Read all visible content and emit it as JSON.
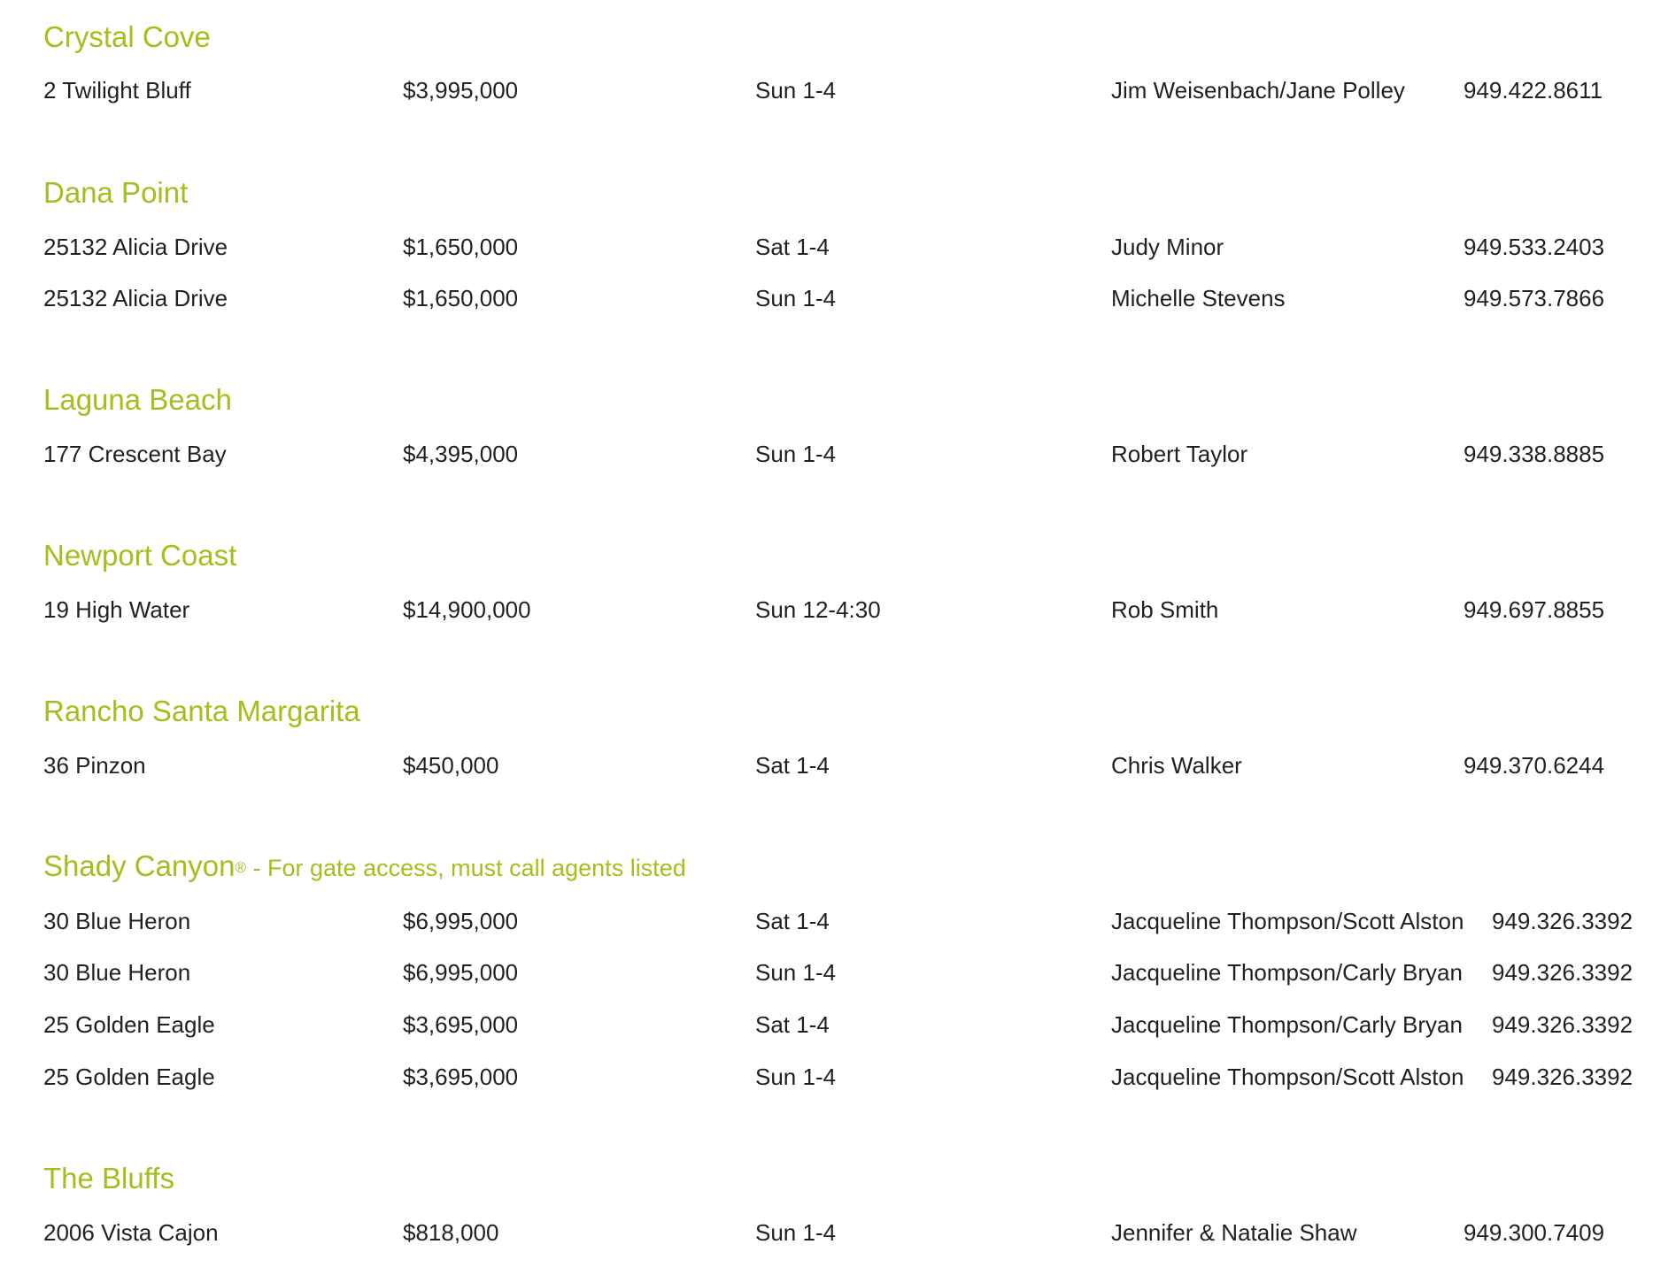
{
  "accent_color": "#a2bf1b",
  "sections": [
    {
      "title": "Crystal Cove",
      "rows": [
        {
          "address": "2 Twilight Bluff",
          "price": "$3,995,000",
          "time": "Sun 1-4",
          "agent": "Jim Weisenbach/Jane Polley",
          "phone": "949.422.8611"
        }
      ]
    },
    {
      "title": "Dana Point",
      "rows": [
        {
          "address": "25132 Alicia Drive",
          "price": "$1,650,000",
          "time": "Sat 1-4",
          "agent": "Judy Minor",
          "phone": "949.533.2403"
        },
        {
          "address": "25132 Alicia Drive",
          "price": "$1,650,000",
          "time": "Sun 1-4",
          "agent": "Michelle Stevens",
          "phone": "949.573.7866"
        }
      ]
    },
    {
      "title": "Laguna Beach",
      "rows": [
        {
          "address": "177 Crescent Bay",
          "price": "$4,395,000",
          "time": "Sun 1-4",
          "agent": "Robert Taylor",
          "phone": "949.338.8885"
        }
      ]
    },
    {
      "title": "Newport Coast",
      "rows": [
        {
          "address": "19 High Water",
          "price": "$14,900,000",
          "time": "Sun 12-4:30",
          "agent": "Rob Smith",
          "phone": "949.697.8855"
        }
      ]
    },
    {
      "title": "Rancho Santa Margarita",
      "rows": [
        {
          "address": "36 Pinzon",
          "price": "$450,000",
          "time": "Sat 1-4",
          "agent": "Chris Walker",
          "phone": "949.370.6244"
        }
      ]
    },
    {
      "title": "Shady Canyon",
      "mark": "®",
      "note": " - For gate access, must call agents listed",
      "rows": [
        {
          "address": "30 Blue Heron",
          "price": "$6,995,000",
          "time": "Sat 1-4",
          "agent": "Jacqueline Thompson/Scott Alston",
          "phone": "949.326.3392"
        },
        {
          "address": "30 Blue Heron",
          "price": "$6,995,000",
          "time": "Sun 1-4",
          "agent": "Jacqueline Thompson/Carly Bryan",
          "phone": "949.326.3392"
        },
        {
          "address": "25 Golden Eagle",
          "price": "$3,695,000",
          "time": "Sat 1-4",
          "agent": "Jacqueline Thompson/Carly Bryan",
          "phone": "949.326.3392"
        },
        {
          "address": "25 Golden Eagle",
          "price": "$3,695,000",
          "time": "Sun 1-4",
          "agent": "Jacqueline Thompson/Scott Alston",
          "phone": "949.326.3392"
        }
      ]
    },
    {
      "title": "The Bluffs",
      "rows": [
        {
          "address": "2006 Vista Cajon",
          "price": "$818,000",
          "time": "Sun 1-4",
          "agent": "Jennifer & Natalie Shaw",
          "phone": "949.300.7409"
        }
      ]
    }
  ]
}
